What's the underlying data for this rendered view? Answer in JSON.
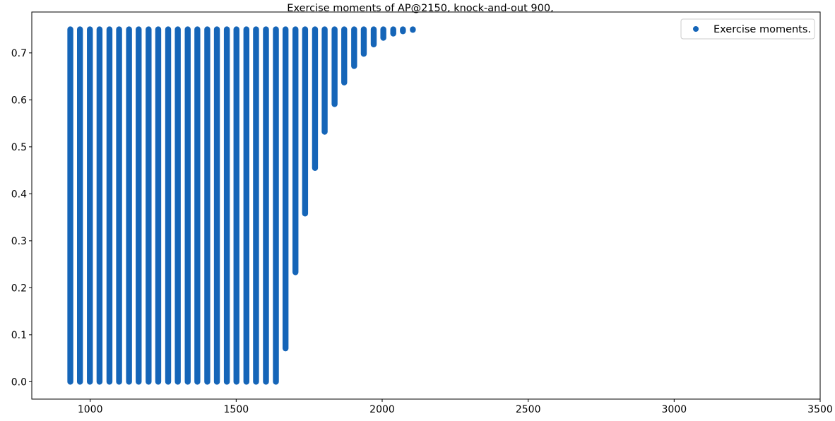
{
  "chart_data": {
    "type": "scatter",
    "title": "Exercise moments of AP@2150, knock-and-out 900,",
    "xlabel": "",
    "ylabel": "",
    "xlim": [
      800,
      3500
    ],
    "ylim": [
      -0.037,
      0.787
    ],
    "xticks": [
      1000,
      1500,
      2000,
      2500,
      3000,
      3500
    ],
    "yticks": [
      0.0,
      0.1,
      0.2,
      0.3,
      0.4,
      0.5,
      0.6,
      0.7
    ],
    "xtick_labels": [
      "1000",
      "1500",
      "2000",
      "2500",
      "3000",
      "3500"
    ],
    "ytick_labels": [
      "0.0",
      "0.1",
      "0.2",
      "0.3",
      "0.4",
      "0.5",
      "0.6",
      "0.7"
    ],
    "grid": false,
    "legend": {
      "position": "top-right",
      "entries": [
        "Exercise moments."
      ]
    },
    "marker_color": "#1565b8",
    "series": [
      {
        "name": "Exercise moments.",
        "columns": [
          {
            "x": 932,
            "y_min": 0.0,
            "y_max": 0.75
          },
          {
            "x": 965,
            "y_min": 0.0,
            "y_max": 0.75
          },
          {
            "x": 999,
            "y_min": 0.0,
            "y_max": 0.75
          },
          {
            "x": 1032,
            "y_min": 0.0,
            "y_max": 0.75
          },
          {
            "x": 1066,
            "y_min": 0.0,
            "y_max": 0.75
          },
          {
            "x": 1099,
            "y_min": 0.0,
            "y_max": 0.75
          },
          {
            "x": 1133,
            "y_min": 0.0,
            "y_max": 0.75
          },
          {
            "x": 1166,
            "y_min": 0.0,
            "y_max": 0.75
          },
          {
            "x": 1200,
            "y_min": 0.0,
            "y_max": 0.75
          },
          {
            "x": 1233,
            "y_min": 0.0,
            "y_max": 0.75
          },
          {
            "x": 1267,
            "y_min": 0.0,
            "y_max": 0.75
          },
          {
            "x": 1300,
            "y_min": 0.0,
            "y_max": 0.75
          },
          {
            "x": 1334,
            "y_min": 0.0,
            "y_max": 0.75
          },
          {
            "x": 1367,
            "y_min": 0.0,
            "y_max": 0.75
          },
          {
            "x": 1401,
            "y_min": 0.0,
            "y_max": 0.75
          },
          {
            "x": 1434,
            "y_min": 0.0,
            "y_max": 0.75
          },
          {
            "x": 1468,
            "y_min": 0.0,
            "y_max": 0.75
          },
          {
            "x": 1501,
            "y_min": 0.0,
            "y_max": 0.75
          },
          {
            "x": 1535,
            "y_min": 0.0,
            "y_max": 0.75
          },
          {
            "x": 1568,
            "y_min": 0.0,
            "y_max": 0.75
          },
          {
            "x": 1602,
            "y_min": 0.0,
            "y_max": 0.75
          },
          {
            "x": 1636,
            "y_min": 0.0,
            "y_max": 0.75
          },
          {
            "x": 1669,
            "y_min": 0.071,
            "y_max": 0.75
          },
          {
            "x": 1703,
            "y_min": 0.233,
            "y_max": 0.75
          },
          {
            "x": 1736,
            "y_min": 0.358,
            "y_max": 0.75
          },
          {
            "x": 1770,
            "y_min": 0.455,
            "y_max": 0.75
          },
          {
            "x": 1803,
            "y_min": 0.532,
            "y_max": 0.75
          },
          {
            "x": 1837,
            "y_min": 0.591,
            "y_max": 0.75
          },
          {
            "x": 1870,
            "y_min": 0.637,
            "y_max": 0.75
          },
          {
            "x": 1904,
            "y_min": 0.672,
            "y_max": 0.75
          },
          {
            "x": 1937,
            "y_min": 0.698,
            "y_max": 0.75
          },
          {
            "x": 1971,
            "y_min": 0.718,
            "y_max": 0.75
          },
          {
            "x": 2004,
            "y_min": 0.732,
            "y_max": 0.75
          },
          {
            "x": 2038,
            "y_min": 0.741,
            "y_max": 0.75
          },
          {
            "x": 2071,
            "y_min": 0.746,
            "y_max": 0.75
          },
          {
            "x": 2105,
            "y_min": 0.749,
            "y_max": 0.75
          }
        ]
      }
    ]
  }
}
